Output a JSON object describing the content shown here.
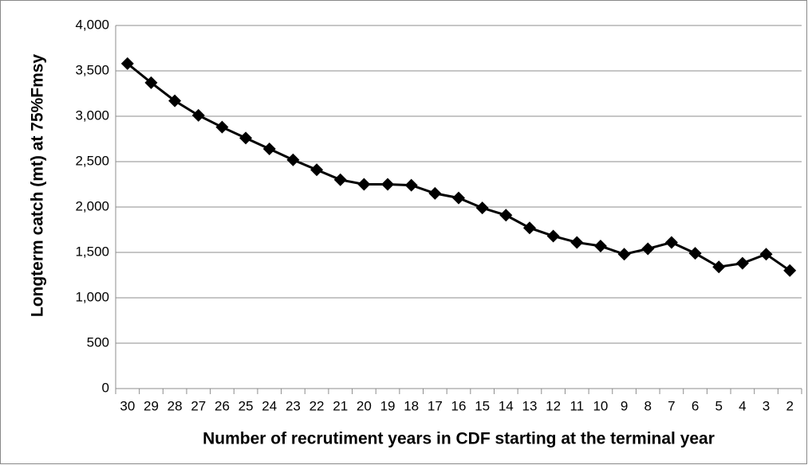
{
  "chart_data": {
    "type": "line",
    "x_label": "Number of recrutiment years in CDF starting at the terminal year",
    "y_label": "Longterm catch (mt) at 75%Fmsy",
    "categories": [
      "30",
      "29",
      "28",
      "27",
      "26",
      "25",
      "24",
      "23",
      "22",
      "21",
      "20",
      "19",
      "18",
      "17",
      "16",
      "15",
      "14",
      "13",
      "12",
      "11",
      "10",
      "9",
      "8",
      "7",
      "6",
      "5",
      "4",
      "3",
      "2"
    ],
    "series": [
      {
        "color": "#000000",
        "marker": "diamond",
        "values": [
          3580,
          3370,
          3170,
          3010,
          2880,
          2760,
          2640,
          2520,
          2410,
          2300,
          2250,
          2250,
          2240,
          2150,
          2100,
          1990,
          1910,
          1770,
          1680,
          1610,
          1570,
          1480,
          1540,
          1610,
          1490,
          1340,
          1380,
          1480,
          1300
        ]
      }
    ],
    "ylim": [
      0,
      4000
    ],
    "yticks": [
      0,
      500,
      {
        "value": 1000,
        "label": "1,000"
      },
      {
        "value": 1500,
        "label": "1,500"
      },
      {
        "value": 2000,
        "label": "2,000"
      },
      {
        "value": 2500,
        "label": "2,500"
      },
      {
        "value": 3000,
        "label": "3,000"
      },
      {
        "value": 3500,
        "label": "3,500"
      },
      {
        "value": 4000,
        "label": "4,000"
      }
    ],
    "grid": true
  }
}
